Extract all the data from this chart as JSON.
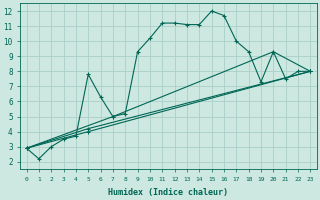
{
  "background_color": "#cce8e0",
  "grid_color": "#aad0c8",
  "line_color": "#006655",
  "xlabel": "Humidex (Indice chaleur)",
  "xlim": [
    -0.5,
    23.5
  ],
  "ylim": [
    1.5,
    12.5
  ],
  "xticks": [
    0,
    1,
    2,
    3,
    4,
    5,
    6,
    7,
    8,
    9,
    10,
    11,
    12,
    13,
    14,
    15,
    16,
    17,
    18,
    19,
    20,
    21,
    22,
    23
  ],
  "yticks": [
    2,
    3,
    4,
    5,
    6,
    7,
    8,
    9,
    10,
    11,
    12
  ],
  "series": [
    {
      "x": [
        0,
        1,
        2,
        3,
        4,
        5,
        6,
        7,
        8,
        9,
        10,
        11,
        12,
        13,
        14,
        15,
        16,
        17,
        18,
        19,
        20,
        21,
        22,
        23
      ],
      "y": [
        2.9,
        2.2,
        3.0,
        3.5,
        3.7,
        7.8,
        6.3,
        5.0,
        5.2,
        9.3,
        10.2,
        11.2,
        11.2,
        11.1,
        11.1,
        12.0,
        11.7,
        10.0,
        9.3,
        7.3,
        9.3,
        7.5,
        8.0,
        8.0
      ]
    },
    {
      "x": [
        0,
        5,
        23
      ],
      "y": [
        2.9,
        4.0,
        8.0
      ]
    },
    {
      "x": [
        0,
        5,
        23
      ],
      "y": [
        2.9,
        4.2,
        8.0
      ]
    },
    {
      "x": [
        0,
        7,
        20,
        23
      ],
      "y": [
        2.9,
        5.0,
        9.3,
        8.0
      ]
    }
  ]
}
